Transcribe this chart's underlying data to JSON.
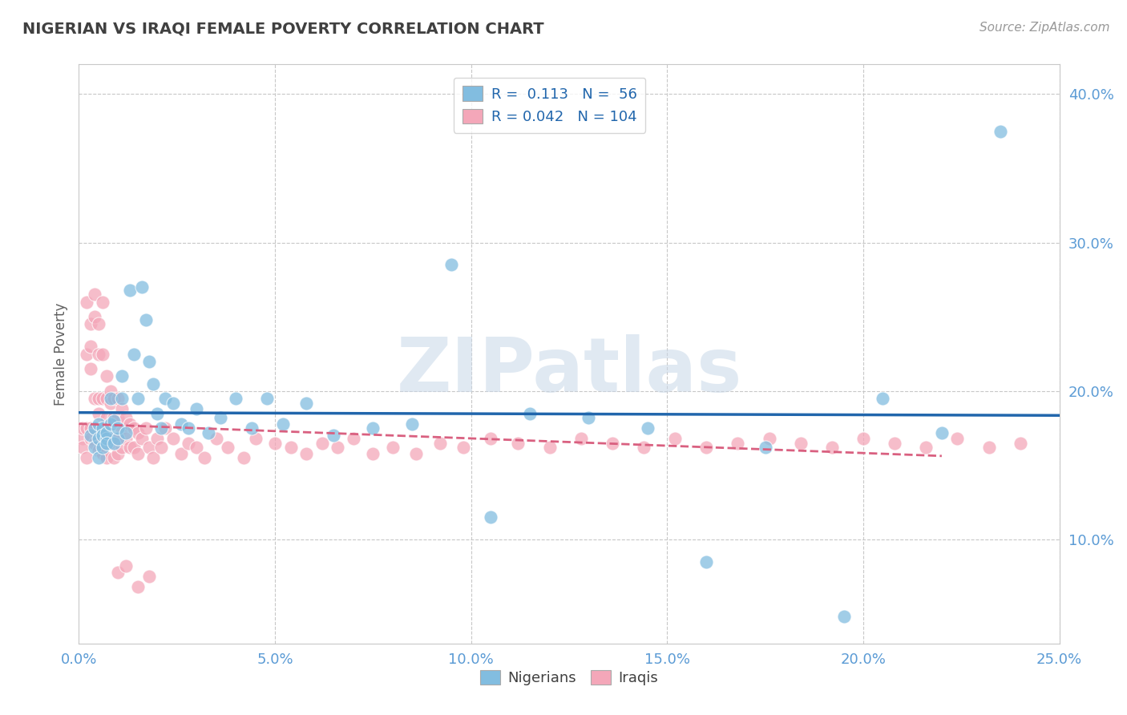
{
  "title": "NIGERIAN VS IRAQI FEMALE POVERTY CORRELATION CHART",
  "source": "Source: ZipAtlas.com",
  "ylabel": "Female Poverty",
  "xlim": [
    0.0,
    0.25
  ],
  "ylim": [
    0.03,
    0.42
  ],
  "xticks": [
    0.0,
    0.05,
    0.1,
    0.15,
    0.2,
    0.25
  ],
  "yticks": [
    0.1,
    0.2,
    0.3,
    0.4
  ],
  "ytick_labels": [
    "10.0%",
    "20.0%",
    "30.0%",
    "40.0%"
  ],
  "xtick_labels": [
    "0.0%",
    "5.0%",
    "10.0%",
    "15.0%",
    "20.0%",
    "25.0%"
  ],
  "nigerian_R": 0.113,
  "nigerian_N": 56,
  "iraqi_R": 0.042,
  "iraqi_N": 104,
  "nigerian_color": "#82bde0",
  "iraqi_color": "#f4a7b9",
  "nigerian_trend_color": "#2166ac",
  "iraqi_trend_color": "#d96080",
  "background_color": "#ffffff",
  "grid_color": "#c8c8c8",
  "watermark": "ZIPatlas",
  "title_color": "#404040",
  "axis_label_color": "#606060",
  "tick_color": "#5b9bd5",
  "legend_label_nigerian": "Nigerians",
  "legend_label_iraqi": "Iraqis",
  "nigerian_x": [
    0.003,
    0.004,
    0.004,
    0.005,
    0.005,
    0.005,
    0.006,
    0.006,
    0.006,
    0.007,
    0.007,
    0.007,
    0.008,
    0.008,
    0.009,
    0.009,
    0.01,
    0.01,
    0.011,
    0.011,
    0.012,
    0.013,
    0.014,
    0.015,
    0.016,
    0.017,
    0.018,
    0.019,
    0.02,
    0.021,
    0.022,
    0.024,
    0.026,
    0.028,
    0.03,
    0.033,
    0.036,
    0.04,
    0.044,
    0.048,
    0.052,
    0.058,
    0.065,
    0.075,
    0.085,
    0.095,
    0.105,
    0.115,
    0.13,
    0.145,
    0.16,
    0.175,
    0.195,
    0.205,
    0.22,
    0.235
  ],
  "nigerian_y": [
    0.17,
    0.175,
    0.162,
    0.168,
    0.178,
    0.155,
    0.175,
    0.162,
    0.17,
    0.168,
    0.172,
    0.165,
    0.178,
    0.195,
    0.165,
    0.18,
    0.168,
    0.175,
    0.195,
    0.21,
    0.172,
    0.268,
    0.225,
    0.195,
    0.27,
    0.248,
    0.22,
    0.205,
    0.185,
    0.175,
    0.195,
    0.192,
    0.178,
    0.175,
    0.188,
    0.172,
    0.182,
    0.195,
    0.175,
    0.195,
    0.178,
    0.192,
    0.17,
    0.175,
    0.178,
    0.285,
    0.115,
    0.185,
    0.182,
    0.175,
    0.085,
    0.162,
    0.048,
    0.195,
    0.172,
    0.375
  ],
  "iraqi_x": [
    0.001,
    0.001,
    0.001,
    0.002,
    0.002,
    0.002,
    0.002,
    0.003,
    0.003,
    0.003,
    0.003,
    0.003,
    0.004,
    0.004,
    0.004,
    0.004,
    0.004,
    0.005,
    0.005,
    0.005,
    0.005,
    0.005,
    0.006,
    0.006,
    0.006,
    0.006,
    0.006,
    0.007,
    0.007,
    0.007,
    0.007,
    0.007,
    0.008,
    0.008,
    0.008,
    0.008,
    0.009,
    0.009,
    0.009,
    0.009,
    0.01,
    0.01,
    0.01,
    0.01,
    0.011,
    0.011,
    0.011,
    0.012,
    0.012,
    0.013,
    0.013,
    0.014,
    0.014,
    0.015,
    0.015,
    0.016,
    0.017,
    0.018,
    0.019,
    0.02,
    0.021,
    0.022,
    0.024,
    0.026,
    0.028,
    0.03,
    0.032,
    0.035,
    0.038,
    0.042,
    0.045,
    0.05,
    0.054,
    0.058,
    0.062,
    0.066,
    0.07,
    0.075,
    0.08,
    0.086,
    0.092,
    0.098,
    0.105,
    0.112,
    0.12,
    0.128,
    0.136,
    0.144,
    0.152,
    0.16,
    0.168,
    0.176,
    0.184,
    0.192,
    0.2,
    0.208,
    0.216,
    0.224,
    0.232,
    0.24,
    0.01,
    0.012,
    0.015,
    0.018
  ],
  "iraqi_y": [
    0.168,
    0.162,
    0.175,
    0.26,
    0.225,
    0.175,
    0.155,
    0.245,
    0.23,
    0.215,
    0.175,
    0.168,
    0.25,
    0.265,
    0.195,
    0.175,
    0.165,
    0.245,
    0.225,
    0.195,
    0.185,
    0.16,
    0.26,
    0.225,
    0.195,
    0.175,
    0.158,
    0.21,
    0.195,
    0.182,
    0.168,
    0.155,
    0.2,
    0.192,
    0.178,
    0.165,
    0.195,
    0.182,
    0.168,
    0.155,
    0.195,
    0.182,
    0.168,
    0.158,
    0.188,
    0.175,
    0.162,
    0.182,
    0.168,
    0.178,
    0.162,
    0.175,
    0.162,
    0.172,
    0.158,
    0.168,
    0.175,
    0.162,
    0.155,
    0.168,
    0.162,
    0.175,
    0.168,
    0.158,
    0.165,
    0.162,
    0.155,
    0.168,
    0.162,
    0.155,
    0.168,
    0.165,
    0.162,
    0.158,
    0.165,
    0.162,
    0.168,
    0.158,
    0.162,
    0.158,
    0.165,
    0.162,
    0.168,
    0.165,
    0.162,
    0.168,
    0.165,
    0.162,
    0.168,
    0.162,
    0.165,
    0.168,
    0.165,
    0.162,
    0.168,
    0.165,
    0.162,
    0.168,
    0.162,
    0.165,
    0.078,
    0.082,
    0.068,
    0.075
  ]
}
